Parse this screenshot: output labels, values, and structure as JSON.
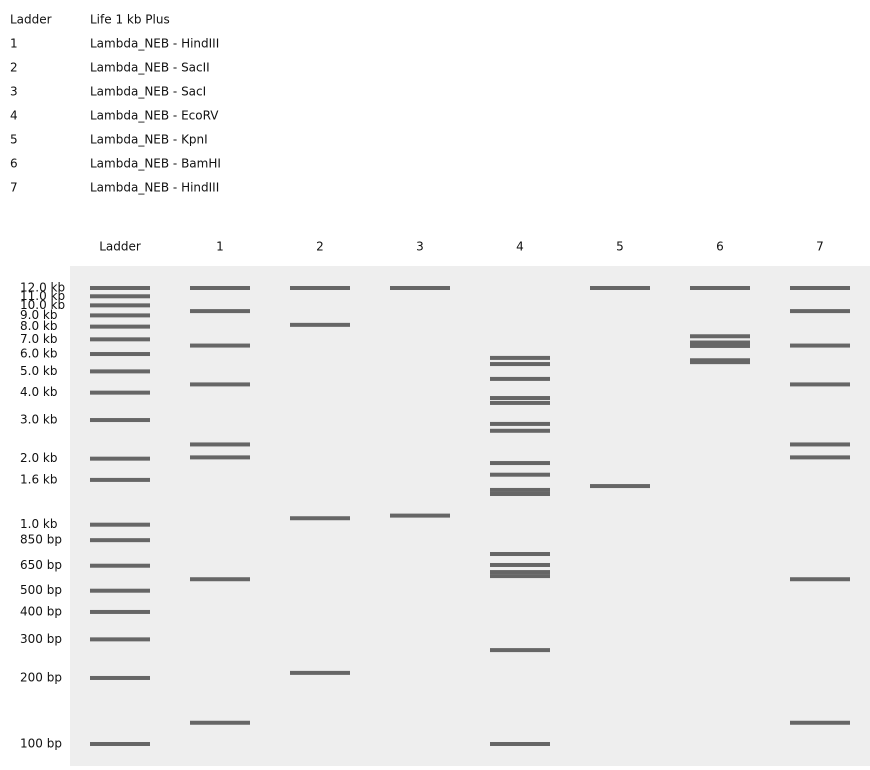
{
  "legend": [
    {
      "lane": "Ladder",
      "name": "Life 1 kb Plus"
    },
    {
      "lane": "1",
      "name": "Lambda_NEB - HindIII"
    },
    {
      "lane": "2",
      "name": "Lambda_NEB - SacII"
    },
    {
      "lane": "3",
      "name": "Lambda_NEB - SacI"
    },
    {
      "lane": "4",
      "name": "Lambda_NEB - EcoRV"
    },
    {
      "lane": "5",
      "name": "Lambda_NEB - KpnI"
    },
    {
      "lane": "6",
      "name": "Lambda_NEB - BamHI"
    },
    {
      "lane": "7",
      "name": "Lambda_NEB - HindIII"
    }
  ],
  "ladder": [
    {
      "value": 12000,
      "label": "12.0 kb"
    },
    {
      "value": 11000,
      "label": "11.0 kb"
    },
    {
      "value": 10000,
      "label": "10.0 kb"
    },
    {
      "value": 9000,
      "label": "9.0 kb"
    },
    {
      "value": 8000,
      "label": "8.0 kb"
    },
    {
      "value": 7000,
      "label": "7.0 kb"
    },
    {
      "value": 6000,
      "label": "6.0 kb"
    },
    {
      "value": 5000,
      "label": "5.0 kb"
    },
    {
      "value": 4000,
      "label": "4.0 kb"
    },
    {
      "value": 3000,
      "label": "3.0 kb"
    },
    {
      "value": 2000,
      "label": "2.0 kb"
    },
    {
      "value": 1600,
      "label": "1.6 kb"
    },
    {
      "value": 1000,
      "label": "1.0 kb"
    },
    {
      "value": 850,
      "label": "850 bp"
    },
    {
      "value": 650,
      "label": "650 bp"
    },
    {
      "value": 500,
      "label": "500 bp"
    },
    {
      "value": 400,
      "label": "400 bp"
    },
    {
      "value": 300,
      "label": "300 bp"
    },
    {
      "value": 200,
      "label": "200 bp"
    },
    {
      "value": 100,
      "label": "100 bp"
    }
  ],
  "lanes": [
    {
      "label": "Ladder"
    },
    {
      "label": "1",
      "bands": [
        12000,
        9416,
        6557,
        4361,
        2322,
        2027,
        564,
        125
      ]
    },
    {
      "label": "2",
      "bands": [
        12000,
        8150,
        1070,
        211
      ]
    },
    {
      "label": "3",
      "bands": [
        12000,
        1100
      ]
    },
    {
      "label": "4",
      "bands": [
        5760,
        5400,
        4620,
        3780,
        3590,
        2880,
        2680,
        1910,
        1690,
        1440,
        1380,
        735,
        655,
        608,
        583,
        268,
        100
      ]
    },
    {
      "label": "5",
      "bands": [
        12000,
        1500
      ]
    },
    {
      "label": "6",
      "bands": [
        12000,
        7230,
        6770,
        6530,
        5620,
        5510
      ]
    },
    {
      "label": "7",
      "bands": [
        12000,
        9416,
        6557,
        4361,
        2322,
        2027,
        564,
        125
      ]
    }
  ]
}
